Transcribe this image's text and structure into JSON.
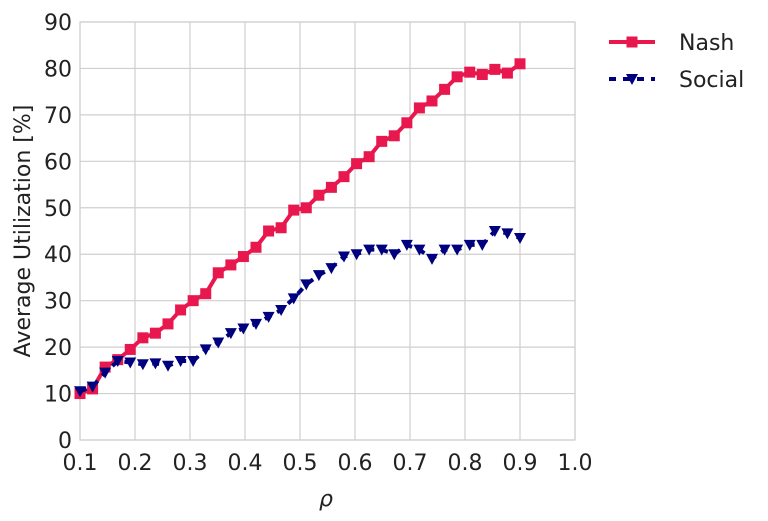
{
  "chart_data": {
    "type": "line",
    "x_label": "ρ",
    "y_label": "Average Utilization [%]",
    "x": [
      0.1,
      0.1229,
      0.1457,
      0.1686,
      0.1914,
      0.2143,
      0.2371,
      0.26,
      0.2829,
      0.3057,
      0.3286,
      0.3514,
      0.3743,
      0.3971,
      0.42,
      0.4429,
      0.4657,
      0.4886,
      0.5114,
      0.5343,
      0.5571,
      0.58,
      0.6029,
      0.6257,
      0.6486,
      0.6714,
      0.6943,
      0.7171,
      0.74,
      0.7629,
      0.7857,
      0.8086,
      0.8314,
      0.8543,
      0.8771,
      0.9
    ],
    "series": [
      {
        "name": "Nash",
        "color": "#e8174e",
        "marker": "square",
        "dash": false,
        "values": [
          10,
          11,
          15.7,
          17.3,
          19.5,
          22,
          23,
          25,
          28,
          30,
          31.5,
          36,
          37.7,
          39.5,
          41.5,
          45,
          45.7,
          49.5,
          50,
          52.7,
          54.4,
          56.7,
          59.5,
          61,
          64.3,
          65.5,
          68.3,
          71.5,
          73,
          75.5,
          78.2,
          79.2,
          78.7,
          79.8,
          79,
          81
        ]
      },
      {
        "name": "Social",
        "color": "#00007f",
        "marker": "triangle-down",
        "dash": true,
        "values": [
          10.5,
          11.5,
          14.5,
          17,
          16.7,
          16.3,
          16.5,
          16,
          17,
          17,
          19.5,
          21,
          23,
          24,
          25,
          26.5,
          28,
          30.5,
          33.5,
          35.5,
          37,
          39.5,
          40,
          41,
          41,
          40,
          42,
          41,
          39,
          41,
          41,
          42,
          42,
          45,
          44.5,
          43.5
        ]
      }
    ],
    "xlim": [
      0.1,
      1
    ],
    "xticks": [
      0.1,
      0.2,
      0.3,
      0.4,
      0.5,
      0.6,
      0.7,
      0.8,
      0.9,
      {
        "value": 1,
        "label": "1.0"
      }
    ],
    "ylim": [
      0,
      90
    ],
    "yticks": [
      0,
      10,
      20,
      30,
      40,
      50,
      60,
      70,
      80,
      90
    ],
    "grid": true,
    "legend": "outside-top-right"
  }
}
